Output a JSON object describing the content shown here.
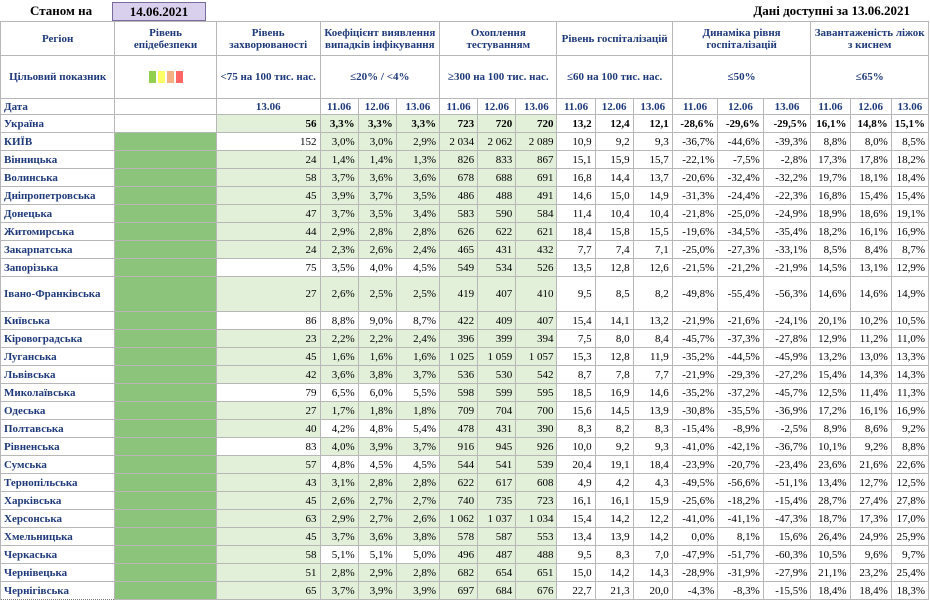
{
  "header": {
    "stanom_label": "Станом на",
    "report_date": "14.06.2021",
    "available_label": "Дані доступні за 13.06.2021"
  },
  "columns": {
    "region": "Регіон",
    "epid_level": "Рівень епідебезпеки",
    "incidence": "Рівень захворюваності",
    "positivity": "Коефіцієнт виявлення випадків інфікування",
    "testing": "Охоплення тестуванням",
    "hosp": "Рівень госпіталізацій",
    "hosp_dyn": "Динаміка рівня госпіталізацій",
    "oxygen": "Завантаженість ліжок з киснем"
  },
  "targets": {
    "label": "Цільовий показник",
    "incidence": "<75 на 100 тис. нас.",
    "positivity": "≤20% / <4%",
    "testing": "≥300 на 100 тис. нас.",
    "hosp": "≤60 на 100 тис. нас.",
    "hosp_dyn": "≤50%",
    "oxygen": "≤65%"
  },
  "dates_row": {
    "label": "Дата",
    "incidence": "13.06",
    "d1": "11.06",
    "d2": "12.06",
    "d3": "13.06"
  },
  "legend_colors": [
    "#92d050",
    "#ffff66",
    "#f4b183",
    "#ff6666"
  ],
  "colors": {
    "good": "#8cc47b",
    "good_light": "#e2efd9",
    "header_text": "#1f3a7a"
  },
  "rows": [
    {
      "name": "Україна",
      "inc": "56",
      "pos": [
        "3,3%",
        "3,3%",
        "3,3%"
      ],
      "test": [
        "723",
        "720",
        "720"
      ],
      "hosp": [
        "13,2",
        "12,4",
        "12,1"
      ],
      "dyn": [
        "-28,6%",
        "-29,6%",
        "-29,5%"
      ],
      "oxy": [
        "16,1%",
        "14,8%",
        "15,1%"
      ],
      "ok": [
        1,
        1,
        1,
        1,
        1,
        1
      ]
    },
    {
      "name": "КИЇВ",
      "inc": "152",
      "pos": [
        "3,0%",
        "3,0%",
        "2,9%"
      ],
      "test": [
        "2 034",
        "2 062",
        "2 089"
      ],
      "hosp": [
        "10,9",
        "9,2",
        "9,3"
      ],
      "dyn": [
        "-36,7%",
        "-44,6%",
        "-39,3%"
      ],
      "oxy": [
        "8,8%",
        "8,0%",
        "8,5%"
      ],
      "ok": [
        0,
        1,
        1,
        0,
        0,
        0
      ]
    },
    {
      "name": "Вінницька",
      "inc": "24",
      "pos": [
        "1,4%",
        "1,4%",
        "1,3%"
      ],
      "test": [
        "826",
        "833",
        "867"
      ],
      "hosp": [
        "15,1",
        "15,9",
        "15,7"
      ],
      "dyn": [
        "-22,1%",
        "-7,5%",
        "-2,8%"
      ],
      "oxy": [
        "17,3%",
        "17,8%",
        "18,2%"
      ],
      "ok": [
        1,
        1,
        1,
        0,
        0,
        0
      ]
    },
    {
      "name": "Волинська",
      "inc": "58",
      "pos": [
        "3,7%",
        "3,6%",
        "3,6%"
      ],
      "test": [
        "678",
        "688",
        "691"
      ],
      "hosp": [
        "16,8",
        "14,4",
        "13,7"
      ],
      "dyn": [
        "-20,6%",
        "-32,4%",
        "-32,2%"
      ],
      "oxy": [
        "19,7%",
        "18,1%",
        "18,4%"
      ],
      "ok": [
        1,
        1,
        1,
        0,
        0,
        0
      ]
    },
    {
      "name": "Дніпропетровська",
      "inc": "45",
      "pos": [
        "3,9%",
        "3,7%",
        "3,5%"
      ],
      "test": [
        "486",
        "488",
        "491"
      ],
      "hosp": [
        "14,6",
        "15,0",
        "14,9"
      ],
      "dyn": [
        "-31,3%",
        "-24,4%",
        "-22,3%"
      ],
      "oxy": [
        "16,8%",
        "15,4%",
        "15,4%"
      ],
      "ok": [
        1,
        1,
        1,
        0,
        0,
        0
      ]
    },
    {
      "name": "Донецька",
      "inc": "47",
      "pos": [
        "3,7%",
        "3,5%",
        "3,4%"
      ],
      "test": [
        "583",
        "590",
        "584"
      ],
      "hosp": [
        "11,4",
        "10,4",
        "10,4"
      ],
      "dyn": [
        "-21,8%",
        "-25,0%",
        "-24,9%"
      ],
      "oxy": [
        "18,9%",
        "18,6%",
        "19,1%"
      ],
      "ok": [
        1,
        1,
        1,
        0,
        0,
        0
      ]
    },
    {
      "name": "Житомирська",
      "inc": "44",
      "pos": [
        "2,9%",
        "2,8%",
        "2,8%"
      ],
      "test": [
        "626",
        "622",
        "621"
      ],
      "hosp": [
        "18,4",
        "15,8",
        "15,5"
      ],
      "dyn": [
        "-19,6%",
        "-34,5%",
        "-35,4%"
      ],
      "oxy": [
        "18,2%",
        "16,1%",
        "16,9%"
      ],
      "ok": [
        1,
        1,
        1,
        0,
        0,
        0
      ]
    },
    {
      "name": "Закарпатська",
      "inc": "24",
      "pos": [
        "2,3%",
        "2,6%",
        "2,4%"
      ],
      "test": [
        "465",
        "431",
        "432"
      ],
      "hosp": [
        "7,7",
        "7,4",
        "7,1"
      ],
      "dyn": [
        "-25,0%",
        "-27,3%",
        "-33,1%"
      ],
      "oxy": [
        "8,5%",
        "8,4%",
        "8,7%"
      ],
      "ok": [
        1,
        1,
        1,
        0,
        0,
        0
      ]
    },
    {
      "name": "Запорізька",
      "inc": "75",
      "pos": [
        "3,5%",
        "4,0%",
        "4,5%"
      ],
      "test": [
        "549",
        "534",
        "526"
      ],
      "hosp": [
        "13,5",
        "12,8",
        "12,6"
      ],
      "dyn": [
        "-21,5%",
        "-21,2%",
        "-21,9%"
      ],
      "oxy": [
        "14,5%",
        "13,1%",
        "12,9%"
      ],
      "ok": [
        0,
        0,
        1,
        0,
        0,
        0
      ]
    },
    {
      "name": "Івано-Франківська",
      "inc": "27",
      "pos": [
        "2,6%",
        "2,5%",
        "2,5%"
      ],
      "test": [
        "419",
        "407",
        "410"
      ],
      "hosp": [
        "9,5",
        "8,5",
        "8,2"
      ],
      "dyn": [
        "-49,8%",
        "-55,4%",
        "-56,3%"
      ],
      "oxy": [
        "14,6%",
        "14,6%",
        "14,9%"
      ],
      "ok": [
        1,
        1,
        1,
        0,
        0,
        0
      ],
      "tall": true
    },
    {
      "name": "Київська",
      "inc": "86",
      "pos": [
        "8,8%",
        "9,0%",
        "8,7%"
      ],
      "test": [
        "422",
        "409",
        "407"
      ],
      "hosp": [
        "15,4",
        "14,1",
        "13,2"
      ],
      "dyn": [
        "-21,9%",
        "-21,6%",
        "-24,1%"
      ],
      "oxy": [
        "20,1%",
        "10,2%",
        "10,5%"
      ],
      "ok": [
        0,
        0,
        1,
        0,
        0,
        0
      ]
    },
    {
      "name": "Кіровоградська",
      "inc": "23",
      "pos": [
        "2,2%",
        "2,2%",
        "2,4%"
      ],
      "test": [
        "396",
        "399",
        "394"
      ],
      "hosp": [
        "7,5",
        "8,0",
        "8,4"
      ],
      "dyn": [
        "-45,7%",
        "-37,3%",
        "-27,8%"
      ],
      "oxy": [
        "12,9%",
        "11,2%",
        "11,0%"
      ],
      "ok": [
        1,
        1,
        1,
        0,
        0,
        0
      ]
    },
    {
      "name": "Луганська",
      "inc": "45",
      "pos": [
        "1,6%",
        "1,6%",
        "1,6%"
      ],
      "test": [
        "1 025",
        "1 059",
        "1 057"
      ],
      "hosp": [
        "15,3",
        "12,8",
        "11,9"
      ],
      "dyn": [
        "-35,2%",
        "-44,5%",
        "-45,9%"
      ],
      "oxy": [
        "13,2%",
        "13,0%",
        "13,3%"
      ],
      "ok": [
        1,
        1,
        1,
        0,
        0,
        0
      ]
    },
    {
      "name": "Львівська",
      "inc": "42",
      "pos": [
        "3,6%",
        "3,8%",
        "3,7%"
      ],
      "test": [
        "536",
        "530",
        "542"
      ],
      "hosp": [
        "8,7",
        "7,8",
        "7,7"
      ],
      "dyn": [
        "-21,9%",
        "-29,3%",
        "-27,2%"
      ],
      "oxy": [
        "15,4%",
        "14,3%",
        "14,3%"
      ],
      "ok": [
        1,
        1,
        1,
        0,
        0,
        0
      ]
    },
    {
      "name": "Миколаївська",
      "inc": "79",
      "pos": [
        "6,5%",
        "6,0%",
        "5,5%"
      ],
      "test": [
        "598",
        "599",
        "595"
      ],
      "hosp": [
        "18,5",
        "16,9",
        "14,6"
      ],
      "dyn": [
        "-35,2%",
        "-37,2%",
        "-45,7%"
      ],
      "oxy": [
        "12,5%",
        "11,4%",
        "11,3%"
      ],
      "ok": [
        0,
        0,
        1,
        0,
        0,
        0
      ]
    },
    {
      "name": "Одеська",
      "inc": "27",
      "pos": [
        "1,7%",
        "1,8%",
        "1,8%"
      ],
      "test": [
        "709",
        "704",
        "700"
      ],
      "hosp": [
        "15,6",
        "14,5",
        "13,9"
      ],
      "dyn": [
        "-30,8%",
        "-35,5%",
        "-36,9%"
      ],
      "oxy": [
        "17,2%",
        "16,1%",
        "16,9%"
      ],
      "ok": [
        1,
        1,
        1,
        0,
        0,
        0
      ]
    },
    {
      "name": "Полтавська",
      "inc": "40",
      "pos": [
        "4,2%",
        "4,8%",
        "5,4%"
      ],
      "test": [
        "478",
        "431",
        "390"
      ],
      "hosp": [
        "8,3",
        "8,2",
        "8,3"
      ],
      "dyn": [
        "-15,4%",
        "-8,9%",
        "-2,5%"
      ],
      "oxy": [
        "8,9%",
        "8,6%",
        "9,2%"
      ],
      "ok": [
        1,
        0,
        1,
        0,
        0,
        0
      ]
    },
    {
      "name": "Рівненська",
      "inc": "83",
      "pos": [
        "4,0%",
        "3,9%",
        "3,7%"
      ],
      "test": [
        "916",
        "945",
        "926"
      ],
      "hosp": [
        "10,0",
        "9,2",
        "9,3"
      ],
      "dyn": [
        "-41,0%",
        "-42,1%",
        "-36,7%"
      ],
      "oxy": [
        "10,1%",
        "9,2%",
        "8,8%"
      ],
      "ok": [
        0,
        1,
        1,
        0,
        0,
        0
      ]
    },
    {
      "name": "Сумська",
      "inc": "57",
      "pos": [
        "4,8%",
        "4,5%",
        "4,5%"
      ],
      "test": [
        "544",
        "541",
        "539"
      ],
      "hosp": [
        "20,4",
        "19,1",
        "18,4"
      ],
      "dyn": [
        "-23,9%",
        "-20,7%",
        "-23,4%"
      ],
      "oxy": [
        "23,6%",
        "21,6%",
        "22,6%"
      ],
      "ok": [
        1,
        0,
        1,
        0,
        0,
        0
      ]
    },
    {
      "name": "Тернопільська",
      "inc": "43",
      "pos": [
        "3,1%",
        "2,8%",
        "2,8%"
      ],
      "test": [
        "622",
        "617",
        "608"
      ],
      "hosp": [
        "4,9",
        "4,2",
        "4,3"
      ],
      "dyn": [
        "-49,5%",
        "-56,6%",
        "-51,1%"
      ],
      "oxy": [
        "13,4%",
        "12,7%",
        "12,5%"
      ],
      "ok": [
        1,
        1,
        1,
        0,
        0,
        0
      ]
    },
    {
      "name": "Харківська",
      "inc": "45",
      "pos": [
        "2,6%",
        "2,7%",
        "2,7%"
      ],
      "test": [
        "740",
        "735",
        "723"
      ],
      "hosp": [
        "16,1",
        "16,1",
        "15,9"
      ],
      "dyn": [
        "-25,6%",
        "-18,2%",
        "-15,4%"
      ],
      "oxy": [
        "28,7%",
        "27,4%",
        "27,8%"
      ],
      "ok": [
        1,
        1,
        1,
        0,
        0,
        0
      ]
    },
    {
      "name": "Херсонська",
      "inc": "63",
      "pos": [
        "2,9%",
        "2,7%",
        "2,6%"
      ],
      "test": [
        "1 062",
        "1 037",
        "1 034"
      ],
      "hosp": [
        "15,4",
        "14,2",
        "12,2"
      ],
      "dyn": [
        "-41,0%",
        "-41,1%",
        "-47,3%"
      ],
      "oxy": [
        "18,7%",
        "17,3%",
        "17,0%"
      ],
      "ok": [
        1,
        1,
        1,
        0,
        0,
        0
      ]
    },
    {
      "name": "Хмельницька",
      "inc": "45",
      "pos": [
        "3,7%",
        "3,6%",
        "3,8%"
      ],
      "test": [
        "578",
        "587",
        "553"
      ],
      "hosp": [
        "13,4",
        "13,9",
        "14,2"
      ],
      "dyn": [
        "0,0%",
        "8,1%",
        "15,6%"
      ],
      "oxy": [
        "26,4%",
        "24,9%",
        "25,9%"
      ],
      "ok": [
        1,
        1,
        1,
        0,
        0,
        0
      ]
    },
    {
      "name": "Черкаська",
      "inc": "58",
      "pos": [
        "5,1%",
        "5,1%",
        "5,0%"
      ],
      "test": [
        "496",
        "487",
        "488"
      ],
      "hosp": [
        "9,5",
        "8,3",
        "7,0"
      ],
      "dyn": [
        "-47,9%",
        "-51,7%",
        "-60,3%"
      ],
      "oxy": [
        "10,5%",
        "9,6%",
        "9,7%"
      ],
      "ok": [
        1,
        0,
        1,
        0,
        0,
        0
      ]
    },
    {
      "name": "Чернівецька",
      "inc": "51",
      "pos": [
        "2,8%",
        "2,9%",
        "2,8%"
      ],
      "test": [
        "682",
        "654",
        "651"
      ],
      "hosp": [
        "15,0",
        "14,2",
        "14,3"
      ],
      "dyn": [
        "-28,9%",
        "-31,9%",
        "-27,9%"
      ],
      "oxy": [
        "21,1%",
        "23,2%",
        "25,4%"
      ],
      "ok": [
        1,
        1,
        1,
        0,
        0,
        0
      ]
    },
    {
      "name": "Чернігівська",
      "inc": "65",
      "pos": [
        "3,7%",
        "3,9%",
        "3,9%"
      ],
      "test": [
        "697",
        "684",
        "676"
      ],
      "hosp": [
        "22,7",
        "21,3",
        "20,0"
      ],
      "dyn": [
        "-4,3%",
        "-8,3%",
        "-15,5%"
      ],
      "oxy": [
        "18,4%",
        "18,4%",
        "18,3%"
      ],
      "ok": [
        1,
        1,
        1,
        0,
        0,
        0
      ]
    }
  ]
}
